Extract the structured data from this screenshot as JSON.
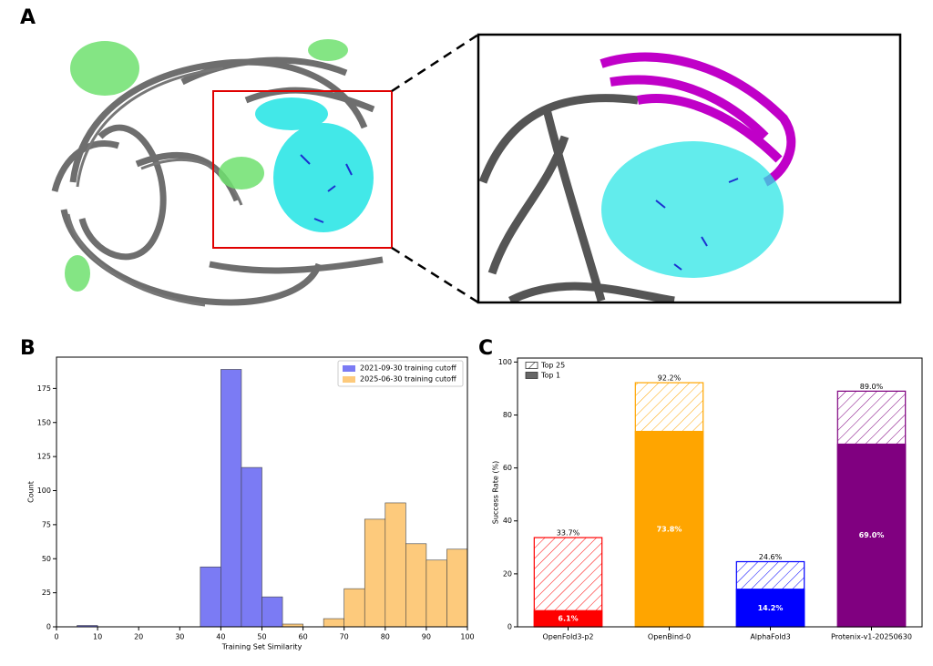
{
  "panel_labels": [
    "A",
    "B",
    "C"
  ],
  "chart_data": [
    {
      "type": "histogram",
      "x_label": "Training Set Similarity",
      "y_label": "Count",
      "bins": [
        0,
        5,
        10,
        15,
        20,
        25,
        30,
        35,
        40,
        45,
        50,
        55,
        60,
        65,
        70,
        75,
        80,
        85,
        90,
        95,
        100
      ],
      "series": [
        {
          "name": "2021-09-30 training cutoff",
          "color": "#7b7bf4",
          "values": [
            0,
            1,
            0,
            0,
            0,
            0,
            0,
            44,
            189,
            117,
            22,
            0,
            0,
            0,
            0,
            0,
            0,
            0,
            0,
            0
          ]
        },
        {
          "name": "2025-06-30 training cutoff",
          "color": "#fdca7c",
          "values": [
            0,
            0,
            0,
            0,
            0,
            0,
            0,
            0,
            0,
            0,
            0,
            2,
            0,
            6,
            28,
            79,
            91,
            61,
            49,
            57
          ]
        }
      ],
      "xlim": [
        0,
        100
      ],
      "xticks": [
        0,
        10,
        20,
        30,
        40,
        50,
        60,
        70,
        80,
        90,
        100
      ],
      "ylim": [
        0,
        198
      ],
      "yticks": [
        0,
        25,
        50,
        75,
        100,
        125,
        150,
        175
      ],
      "legend": "upper right"
    },
    {
      "type": "overlay-bar",
      "y_label": "Success Rate (%)",
      "categories": [
        "OpenFold3-p2",
        "OpenBind-0",
        "AlphaFold3",
        "Protenix-v1-20250630"
      ],
      "colors": [
        "#ff0000",
        "#ffa500",
        "#0000ff",
        "#800080"
      ],
      "series": [
        {
          "name": "Top 25",
          "style": "hatched",
          "values": [
            33.7,
            92.2,
            24.6,
            89.0
          ],
          "value_labels": [
            "33.7%",
            "92.2%",
            "24.6%",
            "89.0%"
          ]
        },
        {
          "name": "Top 1",
          "style": "solid",
          "values": [
            6.1,
            73.8,
            14.2,
            69.0
          ],
          "value_labels": [
            "6.1%",
            "73.8%",
            "14.2%",
            "69.0%"
          ]
        }
      ],
      "ylim": [
        0,
        101.5
      ],
      "yticks": [
        0,
        20,
        40,
        60,
        80,
        100
      ],
      "legend": "upper left"
    }
  ]
}
